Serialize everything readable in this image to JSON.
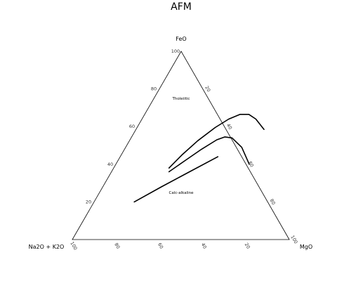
{
  "chart_data": {
    "type": "ternary",
    "title": "AFM",
    "vertices": {
      "top": "FeO",
      "left": "Na2O + K2O",
      "right": "MgO"
    },
    "ticks": {
      "left_edge": [
        "20",
        "40",
        "60",
        "80",
        "100"
      ],
      "right_edge": [
        "20",
        "40",
        "60",
        "80",
        "100"
      ],
      "bottom_edge": [
        "100",
        "80",
        "60",
        "40",
        "20"
      ]
    },
    "region_labels": {
      "tholeiitic": "Tholeiitic",
      "calc_alkaline": "Calc-alkaline"
    },
    "series": [
      {
        "values": [
          {
            "feo": 38,
            "mgo": 25.5
          },
          {
            "feo": 45,
            "mgo": 28
          },
          {
            "feo": 52.5,
            "mgo": 31.5
          },
          {
            "feo": 59.5,
            "mgo": 36
          },
          {
            "feo": 64,
            "mgo": 40
          },
          {
            "feo": 66.5,
            "mgo": 44
          },
          {
            "feo": 66.5,
            "mgo": 48
          },
          {
            "feo": 64,
            "mgo": 52.5
          },
          {
            "feo": 58.5,
            "mgo": 59
          }
        ]
      },
      {
        "values": [
          {
            "feo": 36,
            "mgo": 26.5
          },
          {
            "feo": 42,
            "mgo": 31
          },
          {
            "feo": 48,
            "mgo": 35.5
          },
          {
            "feo": 53,
            "mgo": 40
          },
          {
            "feo": 54.5,
            "mgo": 43
          },
          {
            "feo": 54,
            "mgo": 46.5
          },
          {
            "feo": 49,
            "mgo": 53.5
          },
          {
            "feo": 40,
            "mgo": 61.5
          }
        ]
      },
      {
        "values": [
          {
            "feo": 20,
            "mgo": 18.5
          },
          {
            "feo": 28,
            "mgo": 27
          },
          {
            "feo": 36,
            "mgo": 36
          },
          {
            "feo": 44,
            "mgo": 45
          }
        ]
      }
    ]
  }
}
